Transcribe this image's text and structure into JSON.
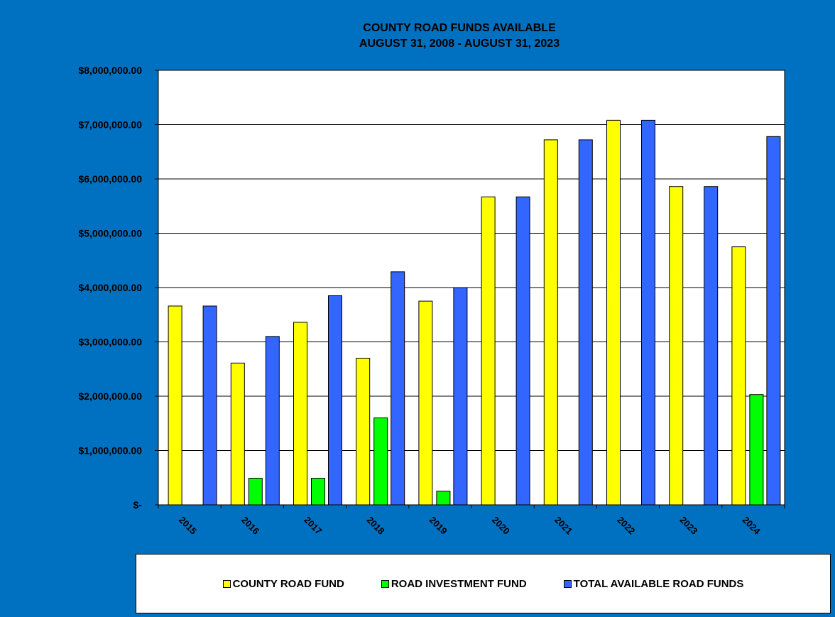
{
  "chart_data": {
    "type": "bar",
    "title": "COUNTY ROAD FUNDS AVAILABLE",
    "subtitle": "AUGUST 31, 2008 - AUGUST 31, 2023",
    "categories": [
      "2015",
      "2016",
      "2017",
      "2018",
      "2019",
      "2020",
      "2021",
      "2022",
      "2023",
      "2024"
    ],
    "series": [
      {
        "name": "COUNTY ROAD FUND",
        "color": "#ffff00",
        "values": [
          3660000,
          2610000,
          3360000,
          2700000,
          3750000,
          5670000,
          6720000,
          7080000,
          5860000,
          4750000
        ]
      },
      {
        "name": "ROAD INVESTMENT FUND",
        "color": "#00ff00",
        "values": [
          0,
          490000,
          490000,
          1600000,
          250000,
          0,
          0,
          0,
          0,
          2030000
        ]
      },
      {
        "name": "TOTAL AVAILABLE ROAD FUNDS",
        "color": "#3366ff",
        "values": [
          3660000,
          3100000,
          3850000,
          4290000,
          4000000,
          5670000,
          6720000,
          7080000,
          5860000,
          6780000
        ]
      }
    ],
    "ylim": [
      0,
      8000000
    ],
    "yticks": [
      0,
      1000000,
      2000000,
      3000000,
      4000000,
      5000000,
      6000000,
      7000000,
      8000000
    ],
    "ytick_labels": [
      "$-",
      "$1,000,000.00",
      "$2,000,000.00",
      "$3,000,000.00",
      "$4,000,000.00",
      "$5,000,000.00",
      "$6,000,000.00",
      "$7,000,000.00",
      "$8,000,000.00"
    ],
    "xlabel": "",
    "ylabel": "",
    "grid": true,
    "legend_position": "bottom"
  }
}
